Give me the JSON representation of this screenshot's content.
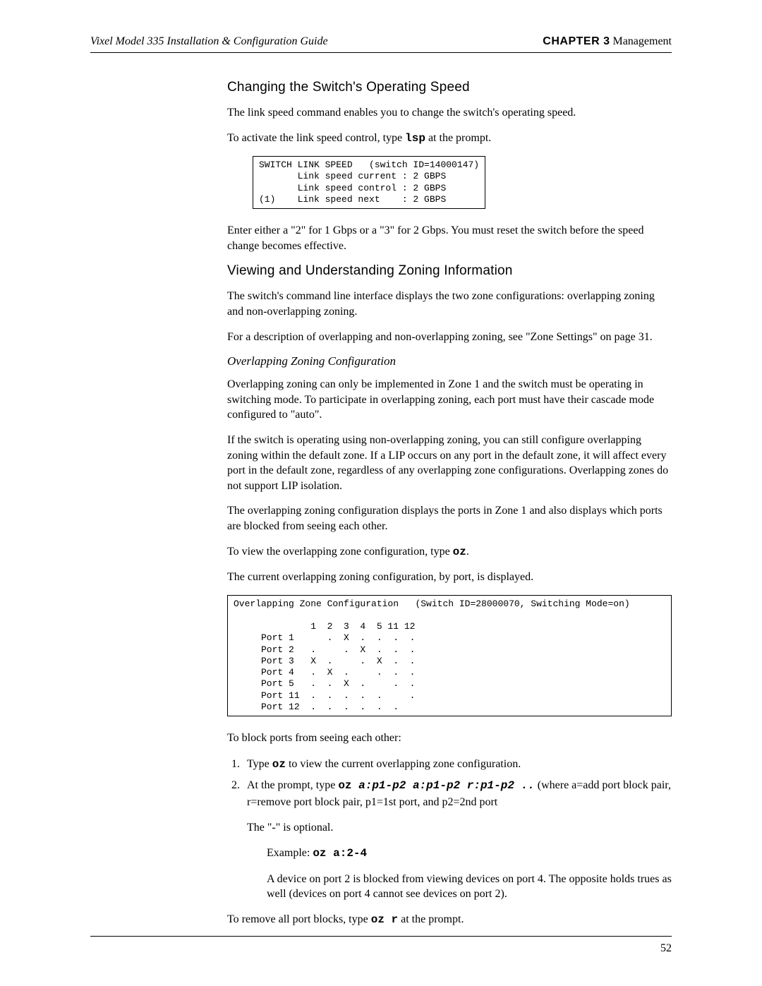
{
  "header": {
    "left": "Vixel Model 335 Installation & Configuration Guide",
    "chapter_label": "CHAPTER 3",
    "chapter_title": " Management"
  },
  "section1": {
    "title": "Changing the Switch's Operating Speed",
    "p1": "The link speed command enables you to change the switch's operating speed.",
    "p2a": "To activate the link speed control, type ",
    "p2cmd": "lsp",
    "p2b": " at the prompt.",
    "code": "SWITCH LINK SPEED   (switch ID=14000147)\n       Link speed current : 2 GBPS\n       Link speed control : 2 GBPS\n(1)    Link speed next    : 2 GBPS",
    "p3": "Enter either a \"2\" for 1 Gbps or a \"3\" for 2 Gbps. You must reset the switch before the speed change becomes effective."
  },
  "section2": {
    "title": "Viewing and Understanding Zoning Information",
    "p1": "The switch's command line interface displays the two zone configurations: overlapping zoning and non-overlapping zoning.",
    "p2": "For a description of overlapping and non-overlapping zoning, see \"Zone Settings\" on page 31.",
    "sub_title": "Overlapping Zoning Configuration",
    "p3": "Overlapping zoning can only be implemented in Zone 1 and the switch must be operating in switching mode. To participate in overlapping zoning, each port must have their cascade mode configured to \"auto\".",
    "p4": "If the switch is operating using non-overlapping zoning, you can still configure overlapping zoning within the default zone. If a LIP occurs on any port in the default zone, it will affect every port in the default zone, regardless of any overlapping zone configurations. Overlapping zones do not support LIP isolation.",
    "p5": "The overlapping zoning configuration displays the ports in Zone 1 and also displays which ports are blocked from seeing each other.",
    "p6a": "To view the overlapping zone configuration, type ",
    "p6cmd": "oz",
    "p6b": ".",
    "p7": "The current overlapping zoning configuration, by port, is displayed.",
    "code": "Overlapping Zone Configuration   (Switch ID=28000070, Switching Mode=on)\n\n              1  2  3  4  5 11 12\n     Port 1      .  X  .  .  .  .\n     Port 2   .     .  X  .  .  .\n     Port 3   X  .     .  X  .  .\n     Port 4   .  X  .     .  .  .\n     Port 5   .  .  X  .     .  .\n     Port 11  .  .  .  .  .     .\n     Port 12  .  .  .  .  .  .   ",
    "p8": "To block ports from seeing each other:",
    "li1a": "Type ",
    "li1cmd": "oz",
    "li1b": " to view the current overlapping zone configuration.",
    "li2a": "At the prompt, type ",
    "li2cmd": "oz ",
    "li2args": "a:p1-p2 a:p1-p2 r:p1-p2 ..",
    "li2b": " (where a=add port block pair, r=remove port block pair, p1=1st port, and p2=2nd port",
    "p9": "The \"-\" is optional.",
    "ex_label": "Example: ",
    "ex_cmd": "oz a:2-4",
    "ex_text": "A device on port 2 is blocked from viewing devices on port 4. The opposite holds trues as well (devices on port 4 cannot see devices on port 2).",
    "p10a": "To remove all port blocks, type ",
    "p10cmd": "oz r",
    "p10b": " at the prompt."
  },
  "footer": {
    "page": "52"
  }
}
